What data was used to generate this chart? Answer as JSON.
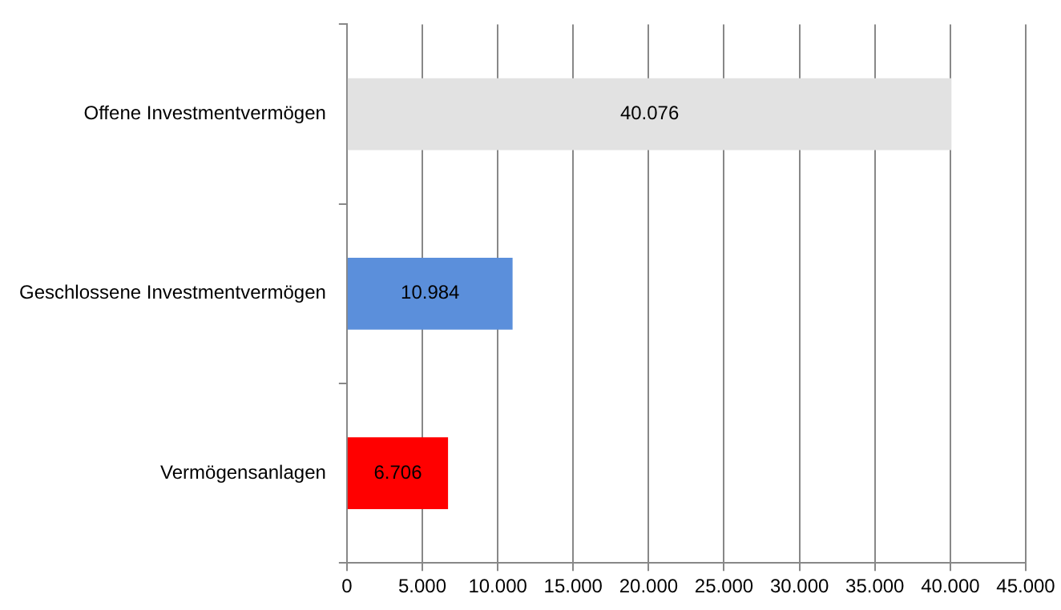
{
  "chart_data": {
    "type": "bar",
    "orientation": "horizontal",
    "categories": [
      "Offene Investmentvermögen",
      "Geschlossene Investmentvermögen",
      "Vermögensanlagen"
    ],
    "values": [
      40076,
      10984,
      6706
    ],
    "colors": [
      "#e2e2e2",
      "#5b8fdb",
      "#ff0000"
    ],
    "value_labels": [
      "40.076",
      "10.984",
      "6.706"
    ],
    "xlim": [
      0,
      45000
    ],
    "xticks": [
      0,
      {
        "value": 5000,
        "label": "5.000"
      },
      {
        "value": 10000,
        "label": "10.000"
      },
      {
        "value": 15000,
        "label": "15.000"
      },
      {
        "value": 20000,
        "label": "20.000"
      },
      {
        "value": 25000,
        "label": "25.000"
      },
      {
        "value": 30000,
        "label": "30.000"
      },
      {
        "value": 35000,
        "label": "35.000"
      },
      {
        "value": 40000,
        "label": "40.000"
      },
      {
        "value": 45000,
        "label": "45.000"
      }
    ],
    "grid": "x",
    "legend": false
  }
}
